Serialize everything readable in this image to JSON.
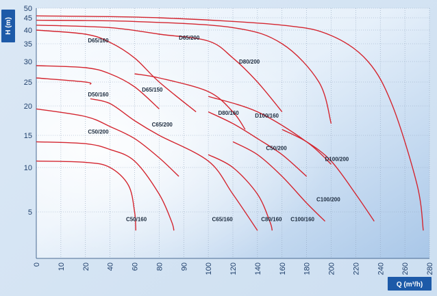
{
  "chart_data": {
    "type": "line",
    "title": "",
    "xlabel": "Q (m³/h)",
    "ylabel": "H (m)",
    "x_ticks": [
      0,
      10,
      20,
      40,
      60,
      80,
      90,
      100,
      120,
      140,
      160,
      180,
      200,
      220,
      240,
      260,
      280
    ],
    "y_ticks": [
      5,
      10,
      15,
      20,
      25,
      30,
      35,
      40,
      45,
      50
    ],
    "xlim": [
      0,
      280
    ],
    "ylim": [
      0,
      50
    ],
    "grid": true,
    "colors": {
      "curve": "#d4252f",
      "grid": "#8fa3bd",
      "background": "#dbe8f5",
      "badge": "#1d5aa8",
      "text": "#1f3f6b"
    },
    "series": [
      {
        "name": "C50/160",
        "points": [
          [
            0,
            11.0
          ],
          [
            20,
            10.8
          ],
          [
            40,
            10.0
          ],
          [
            55,
            8.0
          ],
          [
            60,
            5.0
          ],
          [
            61,
            3.0
          ]
        ]
      },
      {
        "name": "C65/160",
        "points": [
          [
            0,
            14.0
          ],
          [
            20,
            13.7
          ],
          [
            40,
            12.8
          ],
          [
            60,
            11.0
          ],
          [
            80,
            7.0
          ],
          [
            85,
            4.0
          ],
          [
            86,
            3.0
          ]
        ]
      },
      {
        "name": "C50/200",
        "points": [
          [
            0,
            19.5
          ],
          [
            20,
            18.2
          ],
          [
            40,
            16.5
          ],
          [
            60,
            14.5
          ],
          [
            80,
            11.5
          ],
          [
            88,
            9.0
          ]
        ]
      },
      {
        "name": "C65/200",
        "points": [
          [
            24,
            21.5
          ],
          [
            40,
            20.5
          ],
          [
            60,
            17.5
          ],
          [
            80,
            15.0
          ],
          [
            100,
            11.0
          ],
          [
            120,
            7.0
          ],
          [
            140,
            3.0
          ]
        ]
      },
      {
        "name": "C80/160",
        "points": [
          [
            100,
            12.0
          ],
          [
            120,
            10.0
          ],
          [
            140,
            7.0
          ],
          [
            150,
            4.0
          ],
          [
            152,
            3.0
          ]
        ]
      },
      {
        "name": "C100/160",
        "points": [
          [
            120,
            14.0
          ],
          [
            140,
            12.0
          ],
          [
            160,
            9.0
          ],
          [
            180,
            6.0
          ],
          [
            195,
            4.0
          ]
        ]
      },
      {
        "name": "C80/200",
        "points": [
          [
            100,
            19.0
          ],
          [
            120,
            17.0
          ],
          [
            140,
            14.5
          ],
          [
            160,
            12.0
          ],
          [
            180,
            9.0
          ]
        ]
      },
      {
        "name": "C100/200",
        "points": [
          [
            160,
            16.0
          ],
          [
            180,
            14.0
          ],
          [
            200,
            11.0
          ],
          [
            220,
            7.0
          ],
          [
            235,
            4.0
          ]
        ]
      },
      {
        "name": "D50/160",
        "points": [
          [
            0,
            26.0
          ],
          [
            20,
            25.0
          ],
          [
            24,
            24.5
          ]
        ]
      },
      {
        "name": "D65/150",
        "points": [
          [
            0,
            29.0
          ],
          [
            20,
            28.5
          ],
          [
            40,
            27.0
          ],
          [
            60,
            24.0
          ],
          [
            80,
            19.5
          ]
        ]
      },
      {
        "name": "D65/160",
        "points": [
          [
            0,
            40.0
          ],
          [
            20,
            38.5
          ],
          [
            40,
            35.5
          ],
          [
            60,
            31.0
          ],
          [
            80,
            25.0
          ],
          [
            95,
            19.0
          ]
        ]
      },
      {
        "name": "D65/200",
        "points": [
          [
            0,
            42.0
          ],
          [
            40,
            41.0
          ],
          [
            80,
            38.5
          ],
          [
            100,
            36.0
          ],
          [
            120,
            31.0
          ],
          [
            140,
            25.0
          ],
          [
            160,
            19.0
          ]
        ]
      },
      {
        "name": "D80/160",
        "points": [
          [
            60,
            27.0
          ],
          [
            80,
            26.0
          ],
          [
            100,
            23.0
          ],
          [
            120,
            19.0
          ],
          [
            130,
            16.0
          ]
        ]
      },
      {
        "name": "D80/200",
        "points": [
          [
            0,
            44.0
          ],
          [
            60,
            43.5
          ],
          [
            120,
            41.0
          ],
          [
            160,
            35.0
          ],
          [
            190,
            25.0
          ],
          [
            200,
            17.0
          ]
        ]
      },
      {
        "name": "D100/160",
        "points": [
          [
            100,
            22.0
          ],
          [
            140,
            19.0
          ],
          [
            180,
            14.0
          ],
          [
            200,
            10.5
          ]
        ]
      },
      {
        "name": "D100/200",
        "points": [
          [
            0,
            46.0
          ],
          [
            80,
            45.0
          ],
          [
            160,
            42.0
          ],
          [
            200,
            38.0
          ],
          [
            230,
            30.0
          ],
          [
            250,
            20.0
          ],
          [
            270,
            8.0
          ],
          [
            275,
            3.0
          ]
        ]
      }
    ],
    "model_labels": [
      "D65/160",
      "D65/200",
      "D80/200",
      "D50/160",
      "D65/150",
      "D80/160",
      "D100/160",
      "C50/200",
      "C65/200",
      "C50/200",
      "D100/200",
      "C100/200",
      "C50/160",
      "C65/160",
      "C80/160",
      "C100/160"
    ]
  },
  "axis": {
    "y_badge": "H (м)",
    "x_badge": "Q (м³/h)"
  }
}
